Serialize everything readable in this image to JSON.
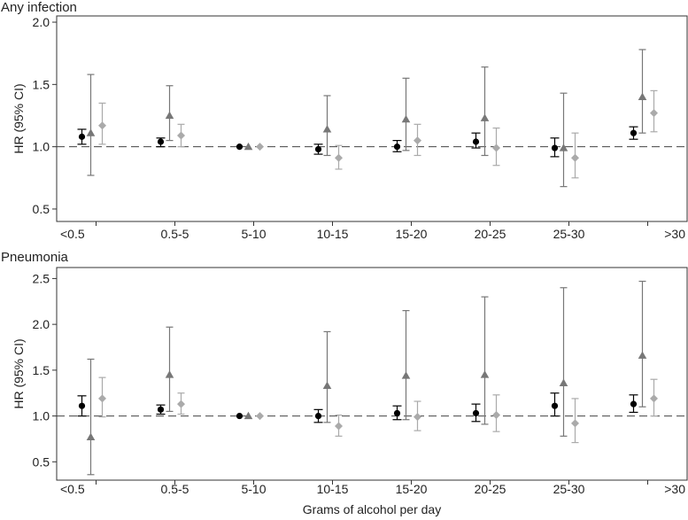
{
  "figure": {
    "xlabel": "Grams of alcohol per day"
  },
  "chart_data": [
    {
      "type": "scatter",
      "title": "Any infection",
      "ylabel": "HR (95% CI)",
      "xlabel": "",
      "categories": [
        "<0.5",
        "0.5-5",
        "5-10",
        "10-15",
        "15-20",
        "20-25",
        "25-30",
        ">30"
      ],
      "ylim": [
        0.4,
        2.05
      ],
      "yticks": [
        0.5,
        1.0,
        1.5,
        2.0
      ],
      "yticklabels": [
        "0.5",
        "1.0",
        "1.5",
        "2.0"
      ],
      "reference_line": 1.0,
      "grid": false,
      "series": [
        {
          "marker": "circle",
          "color": "#000000",
          "values": [
            1.08,
            1.04,
            1.0,
            0.98,
            1.0,
            1.04,
            0.99,
            1.11
          ],
          "lower": [
            1.02,
            1.0,
            1.0,
            0.94,
            0.96,
            0.99,
            0.92,
            1.06
          ],
          "upper": [
            1.14,
            1.07,
            1.0,
            1.02,
            1.05,
            1.11,
            1.07,
            1.16
          ]
        },
        {
          "marker": "triangle",
          "color": "#777777",
          "values": [
            1.11,
            1.25,
            1.0,
            1.14,
            1.22,
            1.23,
            0.99,
            1.4
          ],
          "lower": [
            0.77,
            1.05,
            1.0,
            0.93,
            0.97,
            0.93,
            0.68,
            1.11
          ],
          "upper": [
            1.58,
            1.49,
            1.0,
            1.41,
            1.55,
            1.64,
            1.43,
            1.78
          ]
        },
        {
          "marker": "diamond",
          "color": "#aaaaaa",
          "values": [
            1.17,
            1.09,
            1.0,
            0.91,
            1.05,
            0.99,
            0.91,
            1.27
          ],
          "lower": [
            1.02,
            1.0,
            1.0,
            0.82,
            0.93,
            0.85,
            0.75,
            1.12
          ],
          "upper": [
            1.35,
            1.18,
            1.0,
            1.01,
            1.18,
            1.15,
            1.11,
            1.45
          ]
        }
      ]
    },
    {
      "type": "scatter",
      "title": "Pneumonia",
      "ylabel": "HR (95% CI)",
      "xlabel": "",
      "categories": [
        "<0.5",
        "0.5-5",
        "5-10",
        "10-15",
        "15-20",
        "20-25",
        "25-30",
        ">30"
      ],
      "ylim": [
        0.3,
        2.62
      ],
      "yticks": [
        0.5,
        1.0,
        1.5,
        2.0,
        2.5
      ],
      "yticklabels": [
        "0.5",
        "1.0",
        "1.5",
        "2.0",
        "2.5"
      ],
      "reference_line": 1.0,
      "grid": false,
      "series": [
        {
          "marker": "circle",
          "color": "#000000",
          "values": [
            1.11,
            1.07,
            1.0,
            1.0,
            1.03,
            1.03,
            1.11,
            1.13
          ],
          "lower": [
            1.0,
            1.02,
            1.0,
            0.93,
            0.96,
            0.94,
            1.0,
            1.04
          ],
          "upper": [
            1.22,
            1.12,
            1.0,
            1.07,
            1.11,
            1.13,
            1.25,
            1.23
          ]
        },
        {
          "marker": "triangle",
          "color": "#777777",
          "values": [
            0.77,
            1.45,
            1.0,
            1.33,
            1.44,
            1.45,
            1.36,
            1.66
          ],
          "lower": [
            0.36,
            1.05,
            1.0,
            0.93,
            0.96,
            0.91,
            0.78,
            1.1
          ],
          "upper": [
            1.62,
            1.97,
            1.0,
            1.92,
            2.15,
            2.3,
            2.4,
            2.47
          ]
        },
        {
          "marker": "diamond",
          "color": "#aaaaaa",
          "values": [
            1.19,
            1.13,
            1.0,
            0.89,
            0.99,
            1.01,
            0.92,
            1.19
          ],
          "lower": [
            0.99,
            1.02,
            1.0,
            0.78,
            0.84,
            0.83,
            0.71,
            1.0
          ],
          "upper": [
            1.42,
            1.25,
            1.0,
            1.01,
            1.16,
            1.23,
            1.19,
            1.4
          ]
        }
      ]
    }
  ]
}
